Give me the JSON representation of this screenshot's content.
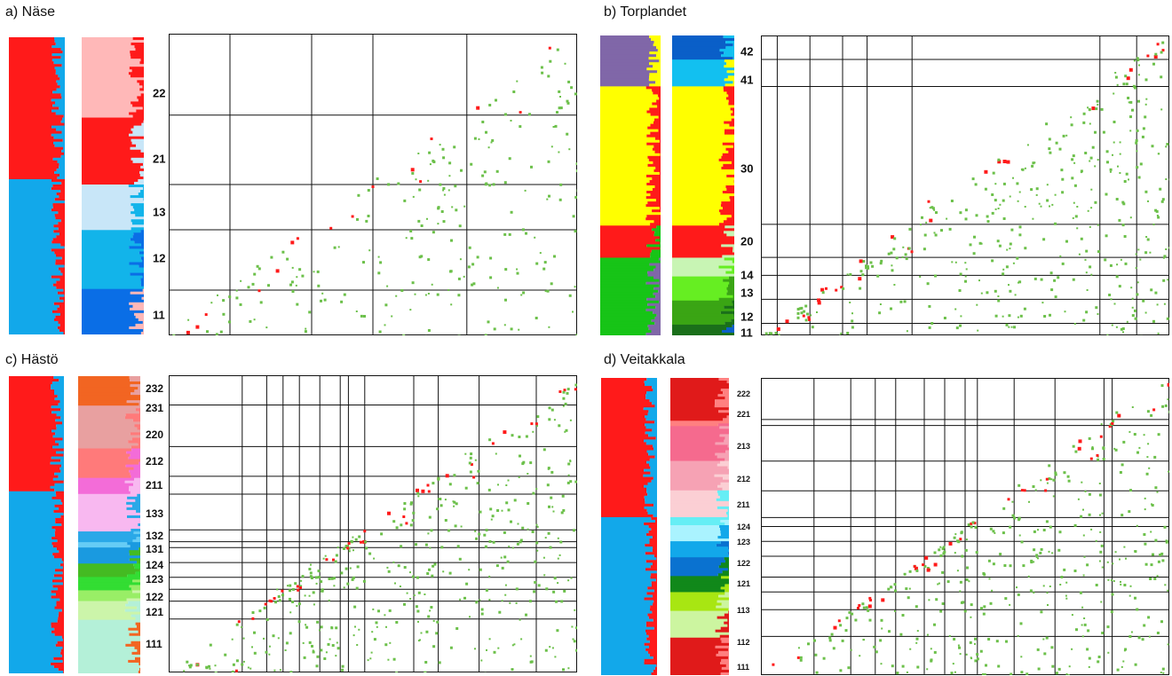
{
  "colors": {
    "red": "#ff1a1a",
    "cyan": "#12a8ea",
    "green_dot": "#6cc04a",
    "red_dot": "#ff1a1a",
    "grid": "#111111"
  },
  "panels": [
    {
      "id": "a",
      "title": "a) Näse",
      "groups": [
        "22",
        "21",
        "13",
        "12",
        "11"
      ],
      "left_colors": [
        "#ff1a1a",
        "#12a8ea"
      ],
      "right_colors": [
        "#ffb8b8",
        "#ff1a1a",
        "#c8e6f8",
        "#12b4ea",
        "#0a6ee6"
      ]
    },
    {
      "id": "b",
      "title": "b) Torplandet",
      "groups": [
        "42",
        "41",
        "30",
        "20",
        "14",
        "13",
        "12",
        "11"
      ],
      "left_colors": [
        "#8067a8",
        "#ffff00",
        "#ff1a1a",
        "#17c417"
      ],
      "right_colors": [
        "#0a5fc8",
        "#12c0f0",
        "#ffff00",
        "#ff1a1a",
        "#c8f5b4",
        "#66ee22",
        "#3aa514",
        "#1a6f1a"
      ]
    },
    {
      "id": "c",
      "title": "c) Hästö",
      "groups": [
        "232",
        "231",
        "220",
        "212",
        "211",
        "133",
        "132",
        "131",
        "124",
        "123",
        "122",
        "121",
        "111"
      ],
      "left_colors": [
        "#ff1a1a",
        "#12a8ea"
      ],
      "right_colors": [
        "#f26522",
        "#e8a0a0",
        "#ff7a7a",
        "#f36cd8",
        "#f8b8f0",
        "#2aa8e8",
        "#66ccf5",
        "#1a9ae0",
        "#44bb22",
        "#33dd33",
        "#99ee66",
        "#ccf5aa",
        "#b4f0d8"
      ]
    },
    {
      "id": "d",
      "title": "d) Veitakkala",
      "groups": [
        "222",
        "221",
        "213",
        "212",
        "211",
        "124",
        "123",
        "122",
        "121",
        "113",
        "112",
        "111"
      ],
      "left_colors": [
        "#ff1a1a",
        "#12a8ea"
      ],
      "right_colors": [
        "#e01a1a",
        "#ff8080",
        "#f56a8e",
        "#f6a2b4",
        "#fbcfd4",
        "#66eef5",
        "#aaf3ff",
        "#12a8ea",
        "#0a72d0",
        "#11881a",
        "#a8e612",
        "#ccf5a0"
      ]
    }
  ],
  "chart_data": [
    {
      "type": "heatmap",
      "title": "a) Näse",
      "groups": [
        "22",
        "21",
        "13",
        "12",
        "11"
      ],
      "grid": true
    },
    {
      "type": "heatmap",
      "title": "b) Torplandet",
      "groups": [
        "42",
        "41",
        "30",
        "20",
        "14",
        "13",
        "12",
        "11"
      ],
      "grid": true
    },
    {
      "type": "heatmap",
      "title": "c) Hästö",
      "groups": [
        "232",
        "231",
        "220",
        "212",
        "211",
        "133",
        "132",
        "131",
        "124",
        "123",
        "122",
        "121",
        "111"
      ],
      "grid": true
    },
    {
      "type": "heatmap",
      "title": "d) Veitakkala",
      "groups": [
        "222",
        "221",
        "213",
        "212",
        "211",
        "124",
        "123",
        "122",
        "121",
        "113",
        "112",
        "111"
      ],
      "grid": true
    }
  ]
}
